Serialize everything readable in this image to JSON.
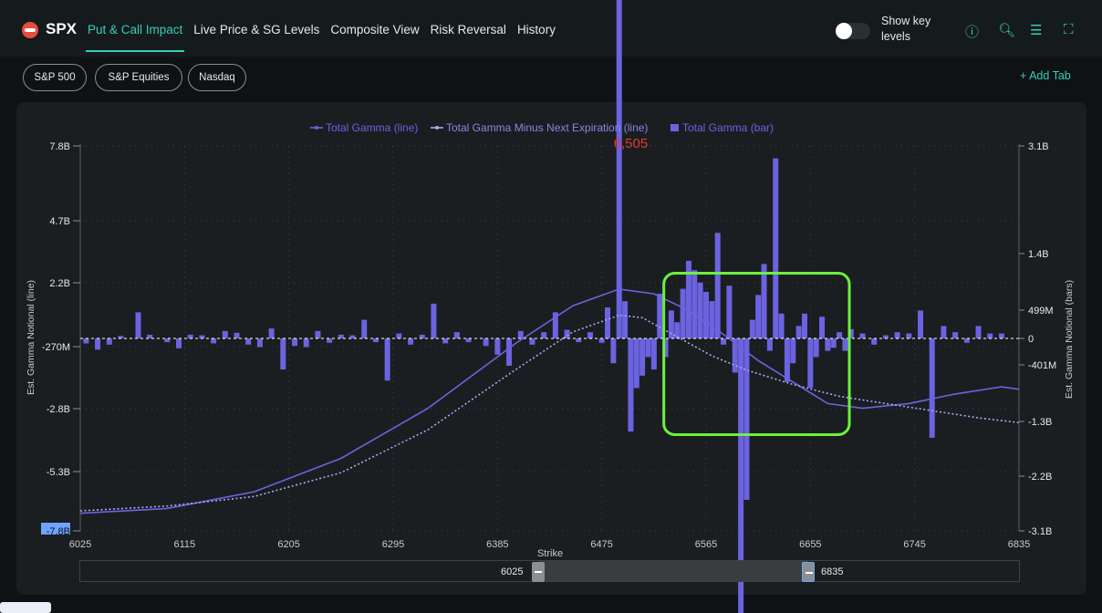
{
  "header": {
    "ticker": "SPX",
    "tabs": [
      "Put & Call Impact",
      "Live Price & SG Levels",
      "Composite View",
      "Risk Reversal",
      "History"
    ],
    "active_tab": "Put & Call Impact",
    "toggle_label": "Show key levels",
    "toggle_on": false,
    "icons": [
      "info-icon",
      "search-icon",
      "settings-sliders-icon",
      "fullscreen-icon"
    ]
  },
  "index_pills": [
    "S&P 500",
    "S&P Equities",
    "Nasdaq"
  ],
  "add_tab_label": "+ Add Tab",
  "colors": {
    "accent": "#35d0b4",
    "series": "#6b63e0",
    "series_dotted": "#a6aaf0",
    "highlight_box": "#6cf13f",
    "peak_label": "#e23b2b"
  },
  "chart_data": {
    "type": "bar+line",
    "legend": [
      "Total Gamma (line)",
      "Total Gamma Minus Next Expiration (line)",
      "Total Gamma (bar)"
    ],
    "xlabel": "Strike",
    "ylabel_left": "Est. Gamma Notional (line)",
    "ylabel_right": "Est. Gamma Notional (bars)",
    "x_ticks": [
      "6025",
      "6115",
      "6205",
      "6295",
      "6385",
      "6475",
      "6565",
      "6655",
      "6745",
      "6835"
    ],
    "xlim": [
      6025,
      6835
    ],
    "y_left_ticks": [
      "7.8B",
      "4.7B",
      "2.2B",
      "-270M",
      "-2.8B",
      "-5.3B",
      "-7.8B"
    ],
    "y_right_ticks": [
      "3.1B",
      "1.4B",
      "499M",
      "0",
      "-401M",
      "-1.3B",
      "-2.2B",
      "-3.1B"
    ],
    "ylim_bars": [
      -3.1,
      3.1
    ],
    "peak_label": "6,505",
    "grid": true,
    "series_line_total": {
      "x": [
        6025,
        6100,
        6175,
        6250,
        6325,
        6400,
        6450,
        6490,
        6520,
        6550,
        6580,
        6610,
        6640,
        6670,
        6700,
        6740,
        6780,
        6820,
        6835
      ],
      "y": [
        -7.6,
        -7.4,
        -6.7,
        -5.3,
        -3.2,
        -0.5,
        1.1,
        1.8,
        1.6,
        0.9,
        -0.1,
        -1.2,
        -2.1,
        -3.0,
        -3.2,
        -3.0,
        -2.6,
        -2.3,
        -2.4
      ]
    },
    "series_line_minus_next": {
      "x": [
        6025,
        6100,
        6175,
        6250,
        6325,
        6400,
        6450,
        6490,
        6510,
        6540,
        6570,
        6600,
        6640,
        6680,
        6720,
        6760,
        6800,
        6835
      ],
      "y": [
        -7.5,
        -7.3,
        -6.9,
        -5.9,
        -4.1,
        -1.6,
        0.0,
        0.7,
        0.6,
        -0.2,
        -1.0,
        -1.6,
        -2.2,
        -2.7,
        -3.0,
        -3.3,
        -3.6,
        -3.8
      ]
    },
    "bars": {
      "x": [
        6030,
        6040,
        6050,
        6060,
        6075,
        6085,
        6100,
        6110,
        6120,
        6130,
        6140,
        6150,
        6160,
        6170,
        6180,
        6190,
        6200,
        6210,
        6220,
        6230,
        6240,
        6250,
        6260,
        6270,
        6280,
        6290,
        6300,
        6310,
        6320,
        6330,
        6340,
        6350,
        6360,
        6375,
        6385,
        6395,
        6405,
        6415,
        6425,
        6435,
        6445,
        6455,
        6465,
        6475,
        6480,
        6485,
        6490,
        6495,
        6500,
        6505,
        6510,
        6515,
        6520,
        6525,
        6530,
        6535,
        6540,
        6545,
        6550,
        6555,
        6560,
        6565,
        6570,
        6575,
        6580,
        6585,
        6590,
        6595,
        6600,
        6605,
        6610,
        6615,
        6620,
        6625,
        6630,
        6635,
        6640,
        6645,
        6650,
        6655,
        6660,
        6665,
        6670,
        6675,
        6680,
        6685,
        6690,
        6700,
        6710,
        6720,
        6730,
        6740,
        6750,
        6760,
        6770,
        6780,
        6790,
        6800,
        6810,
        6820
      ],
      "values": [
        -0.08,
        -0.18,
        -0.1,
        0.04,
        0.42,
        0.06,
        -0.06,
        -0.16,
        0.06,
        0.05,
        -0.08,
        0.12,
        0.09,
        -0.1,
        -0.14,
        0.16,
        -0.5,
        -0.12,
        -0.14,
        0.12,
        -0.07,
        0.06,
        0.05,
        0.3,
        -0.06,
        -0.68,
        0.08,
        -0.1,
        0.06,
        0.56,
        -0.08,
        0.1,
        -0.06,
        -0.12,
        -0.26,
        -0.44,
        0.12,
        -0.1,
        0.1,
        0.42,
        0.14,
        -0.06,
        0.1,
        -0.07,
        0.5,
        -0.4,
        7.5,
        0.6,
        -1.5,
        -0.8,
        -0.6,
        -0.3,
        -0.5,
        0.72,
        -0.3,
        0.45,
        0.26,
        0.8,
        1.25,
        1.1,
        0.9,
        0.75,
        0.6,
        1.7,
        -0.1,
        0.85,
        -0.55,
        -4.8,
        -2.6,
        0.3,
        0.7,
        1.2,
        -0.2,
        2.9,
        0.4,
        -0.7,
        -0.4,
        0.2,
        0.4,
        -0.8,
        -0.3,
        0.35,
        -0.2,
        -0.15,
        0.1,
        -0.2,
        0.15,
        0.08,
        -0.1,
        0.05,
        0.1,
        0.08,
        0.45,
        -1.6,
        0.2,
        0.1,
        -0.07,
        0.2,
        0.08,
        0.08
      ]
    },
    "highlight_region": {
      "x": [
        6560,
        6665
      ],
      "y_bars": [
        -1.55,
        1.05
      ]
    },
    "x_range_selector": [
      "6025",
      "6835"
    ]
  }
}
